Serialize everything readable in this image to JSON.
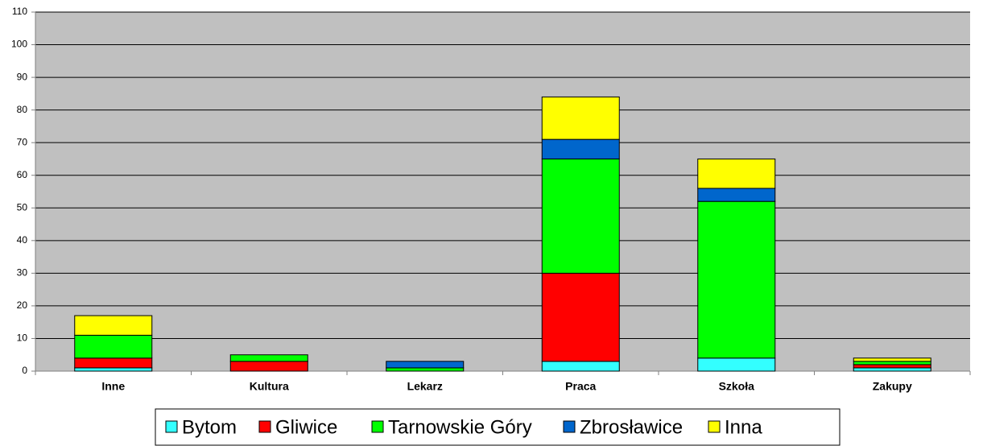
{
  "chart_data": {
    "type": "stacked_bar",
    "categories": [
      "Inne",
      "Kultura",
      "Lekarz",
      "Praca",
      "Szkoła",
      "Zakupy"
    ],
    "series": [
      {
        "name": "Bytom",
        "color": "#33ffff",
        "values": [
          1,
          0,
          0,
          3,
          4,
          1
        ]
      },
      {
        "name": "Gliwice",
        "color": "#ff0000",
        "values": [
          3,
          3,
          0,
          27,
          0,
          1
        ]
      },
      {
        "name": "Tarnowskie Góry",
        "color": "#00ff00",
        "values": [
          7,
          2,
          1,
          35,
          48,
          1
        ]
      },
      {
        "name": "Zbrosławice",
        "color": "#0066cc",
        "values": [
          0,
          0,
          2,
          6,
          4,
          0
        ]
      },
      {
        "name": "Inna",
        "color": "#ffff00",
        "values": [
          6,
          0,
          0,
          13,
          9,
          1
        ]
      }
    ],
    "ylim": [
      0,
      110
    ],
    "yticks": [
      0,
      10,
      20,
      30,
      40,
      50,
      60,
      70,
      80,
      90,
      100,
      110
    ],
    "grid": true,
    "legend": "bottom"
  }
}
